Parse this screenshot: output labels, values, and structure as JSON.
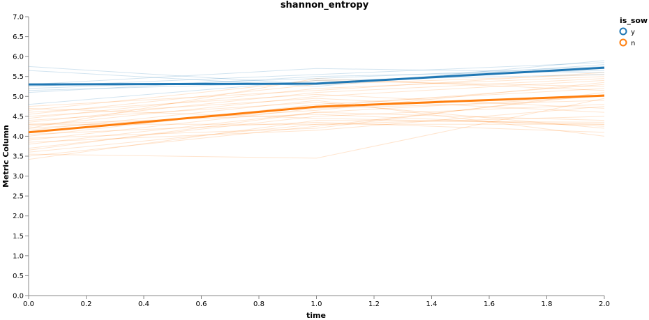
{
  "chart_data": {
    "type": "line",
    "title": "shannon_entropy",
    "xlabel": "time",
    "ylabel": "Metric Column",
    "xlim": [
      0,
      2
    ],
    "ylim": [
      0,
      7
    ],
    "x_ticks": [
      "0.0",
      "0.2",
      "0.4",
      "0.6",
      "0.8",
      "1.0",
      "1.2",
      "1.4",
      "1.6",
      "1.8",
      "2.0"
    ],
    "y_ticks": [
      "0.0",
      "0.5",
      "1.0",
      "1.5",
      "2.0",
      "2.5",
      "3.0",
      "3.5",
      "4.0",
      "4.5",
      "5.0",
      "5.5",
      "6.0",
      "6.5",
      "7.0"
    ],
    "grid": false,
    "legend": {
      "title": "is_sow",
      "placement": "top-right",
      "entries": [
        {
          "label": "y",
          "color": "#1f77b4"
        },
        {
          "label": "n",
          "color": "#ff7f0e"
        }
      ]
    },
    "x": [
      0,
      1,
      2
    ],
    "mean_series": [
      {
        "name": "y",
        "color": "#1f77b4",
        "values": [
          5.3,
          5.32,
          5.72
        ]
      },
      {
        "name": "n",
        "color": "#ff7f0e",
        "values": [
          4.1,
          4.74,
          5.02
        ]
      }
    ],
    "individual_series": [
      {
        "group": "y",
        "values": [
          5.75,
          5.3,
          5.8
        ]
      },
      {
        "group": "y",
        "values": [
          5.65,
          5.25,
          5.9
        ]
      },
      {
        "group": "y",
        "values": [
          5.3,
          5.7,
          5.6
        ]
      },
      {
        "group": "y",
        "values": [
          5.25,
          5.55,
          5.85
        ]
      },
      {
        "group": "y",
        "values": [
          5.2,
          5.45,
          5.75
        ]
      },
      {
        "group": "y",
        "values": [
          5.15,
          5.35,
          5.7
        ]
      },
      {
        "group": "y",
        "values": [
          5.1,
          5.5,
          5.65
        ]
      },
      {
        "group": "y",
        "values": [
          4.8,
          5.4,
          5.55
        ]
      },
      {
        "group": "n",
        "values": [
          3.42,
          4.4,
          4.35
        ]
      },
      {
        "group": "n",
        "values": [
          3.55,
          3.45,
          4.95
        ]
      },
      {
        "group": "n",
        "values": [
          3.6,
          4.3,
          4.5
        ]
      },
      {
        "group": "n",
        "values": [
          3.7,
          4.5,
          4.8
        ]
      },
      {
        "group": "n",
        "values": [
          3.8,
          4.6,
          5.0
        ]
      },
      {
        "group": "n",
        "values": [
          3.9,
          4.7,
          4.9
        ]
      },
      {
        "group": "n",
        "values": [
          3.95,
          4.2,
          5.1
        ]
      },
      {
        "group": "n",
        "values": [
          4.0,
          4.8,
          5.2
        ]
      },
      {
        "group": "n",
        "values": [
          4.05,
          4.35,
          4.1
        ]
      },
      {
        "group": "n",
        "values": [
          4.1,
          4.75,
          5.3
        ]
      },
      {
        "group": "n",
        "values": [
          4.15,
          4.9,
          4.0
        ]
      },
      {
        "group": "n",
        "values": [
          4.2,
          4.65,
          5.35
        ]
      },
      {
        "group": "n",
        "values": [
          4.25,
          5.0,
          5.4
        ]
      },
      {
        "group": "n",
        "values": [
          4.3,
          4.55,
          4.25
        ]
      },
      {
        "group": "n",
        "values": [
          4.35,
          5.1,
          5.45
        ]
      },
      {
        "group": "n",
        "values": [
          4.4,
          4.85,
          4.2
        ]
      },
      {
        "group": "n",
        "values": [
          4.45,
          5.2,
          5.5
        ]
      },
      {
        "group": "n",
        "values": [
          4.5,
          4.95,
          4.6
        ]
      },
      {
        "group": "n",
        "values": [
          4.55,
          5.3,
          5.55
        ]
      },
      {
        "group": "n",
        "values": [
          4.6,
          5.05,
          4.7
        ]
      },
      {
        "group": "n",
        "values": [
          4.65,
          5.4,
          5.25
        ]
      },
      {
        "group": "n",
        "values": [
          4.7,
          4.45,
          4.3
        ]
      },
      {
        "group": "n",
        "values": [
          4.75,
          5.15,
          5.6
        ]
      },
      {
        "group": "n",
        "values": [
          3.5,
          4.25,
          5.05
        ]
      },
      {
        "group": "n",
        "values": [
          3.65,
          4.6,
          4.4
        ]
      },
      {
        "group": "n",
        "values": [
          3.85,
          4.15,
          4.75
        ]
      },
      {
        "group": "n",
        "values": [
          4.3,
          4.3,
          4.3
        ]
      },
      {
        "group": "n",
        "values": [
          4.2,
          5.45,
          5.15
        ]
      }
    ]
  }
}
